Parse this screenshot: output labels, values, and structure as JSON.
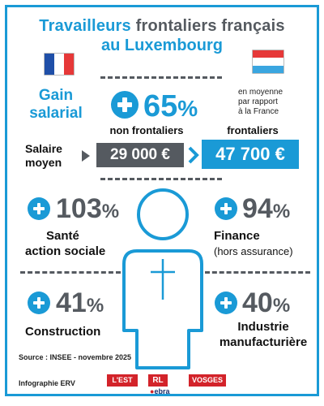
{
  "title": {
    "part1_blue": "Travailleurs",
    "part1_grey": "frontaliers français",
    "part2": "au Luxembourg"
  },
  "gain": {
    "label_line1": "Gain",
    "label_line2": "salarial",
    "value": "65",
    "sign": "%",
    "note_line1": "en moyenne",
    "note_line2": "par rapport",
    "note_line3": "à la France"
  },
  "salary": {
    "label_line1": "Salaire",
    "label_line2": "moyen",
    "col1_header": "non frontaliers",
    "col2_header": "frontaliers",
    "col1_value": "29 000 €",
    "col2_value": "47 700 €"
  },
  "sectors": [
    {
      "value": "103",
      "sign": "%",
      "line1": "Santé",
      "line2": "action sociale",
      "line2_sub": false
    },
    {
      "value": "94",
      "sign": "%",
      "line1": "Finance",
      "line2": "(hors assurance)",
      "line2_sub": true
    },
    {
      "value": "41",
      "sign": "%",
      "line1": "Construction",
      "line2": "",
      "line2_sub": false
    },
    {
      "value": "40",
      "sign": "%",
      "line1": "Industrie",
      "line2": "manufacturière",
      "line2_sub": false
    }
  ],
  "source": "Source : INSEE - novembre 2025",
  "credit": "Infographie ERV",
  "logos": [
    "L'EST",
    "RL",
    "VOSGES",
    "ebra"
  ],
  "colors": {
    "accent": "#1a9ad6",
    "grey": "#555a60",
    "box_dark": "#555a60"
  }
}
